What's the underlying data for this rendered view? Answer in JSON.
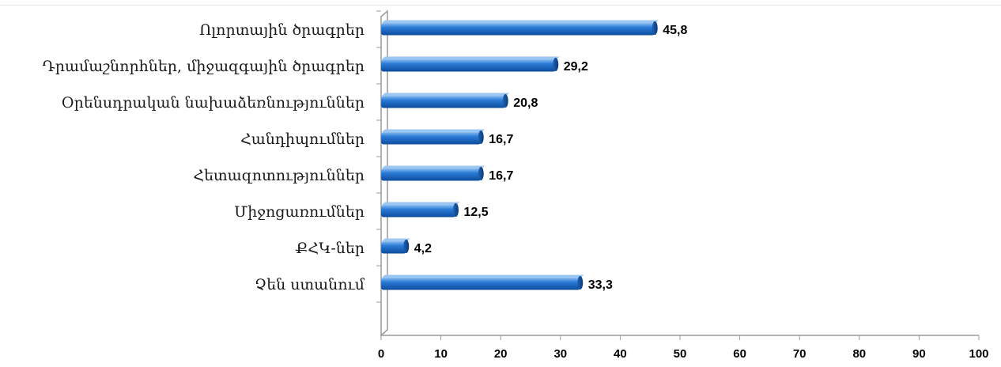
{
  "chart_data": {
    "type": "bar",
    "orientation": "horizontal",
    "categories": [
      "Ոլորտային ծրագրեր",
      "Դրամաշնորհներ, միջազգային ծրագրեր",
      "Օրենսդրական նախաձեռնություններ",
      "Հանդիպումներ",
      "Հետազոտություններ",
      "Միջոցառումներ",
      "ՔՀԿ-ներ",
      "Չեն ստանում"
    ],
    "values": [
      45.8,
      29.2,
      20.8,
      16.7,
      16.7,
      12.5,
      4.2,
      33.3
    ],
    "value_labels": [
      "45,8",
      "29,2",
      "20,8",
      "16,7",
      "16,7",
      "12,5",
      "4,2",
      "33,3"
    ],
    "xlim": [
      0,
      100
    ],
    "x_ticks": [
      "0",
      "10",
      "20",
      "30",
      "40",
      "50",
      "60",
      "70",
      "80",
      "90",
      "100"
    ],
    "title": "",
    "xlabel": "",
    "ylabel": "",
    "grid": false,
    "legend": "none",
    "bar_color": "#1565c0",
    "bar_highlight": "#5aa0e6",
    "bar_shadow": "#0a3f80"
  }
}
